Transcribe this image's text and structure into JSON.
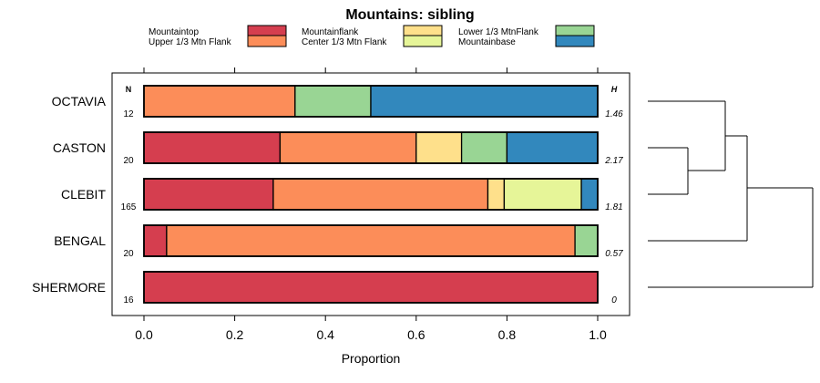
{
  "chart_data": {
    "type": "bar",
    "stacked": true,
    "orientation": "horizontal",
    "title": "Mountains: sibling",
    "xlabel": "Proportion",
    "ylabel": "",
    "xlim": [
      0,
      1
    ],
    "xticks": [
      "0.0",
      "0.2",
      "0.4",
      "0.6",
      "0.8",
      "1.0"
    ],
    "xtick_values": [
      0,
      0.2,
      0.4,
      0.6,
      0.8,
      1.0
    ],
    "legend_position": "top",
    "n_header": "N",
    "h_header": "H",
    "categories": [
      "OCTAVIA",
      "CASTON",
      "CLEBIT",
      "BENGAL",
      "SHERMORE"
    ],
    "n_values": [
      "12",
      "20",
      "165",
      "20",
      "16"
    ],
    "h_values": [
      "1.46",
      "2.17",
      "1.81",
      "0.57",
      "0"
    ],
    "series": [
      {
        "name": "Mountaintop",
        "color": "#d53e4f",
        "values": [
          0,
          0.3,
          0.285,
          0.05,
          1.0
        ]
      },
      {
        "name": "Upper 1/3 Mtn Flank",
        "color": "#fc8d59",
        "values": [
          0.333,
          0.3,
          0.473,
          0.9,
          0
        ]
      },
      {
        "name": "Mountainflank",
        "color": "#fee08b",
        "values": [
          0,
          0.1,
          0.036,
          0,
          0
        ]
      },
      {
        "name": "Center 1/3 Mtn Flank",
        "color": "#e6f598",
        "values": [
          0,
          0,
          0.17,
          0,
          0
        ]
      },
      {
        "name": "Lower 1/3 MtnFlank",
        "color": "#99d594",
        "values": [
          0.167,
          0.1,
          0,
          0.05,
          0
        ]
      },
      {
        "name": "Mountainbase",
        "color": "#3288bd",
        "values": [
          0.5,
          0.2,
          0.036,
          0,
          0
        ]
      }
    ],
    "dendrogram": "hierarchical clustering of categories"
  }
}
